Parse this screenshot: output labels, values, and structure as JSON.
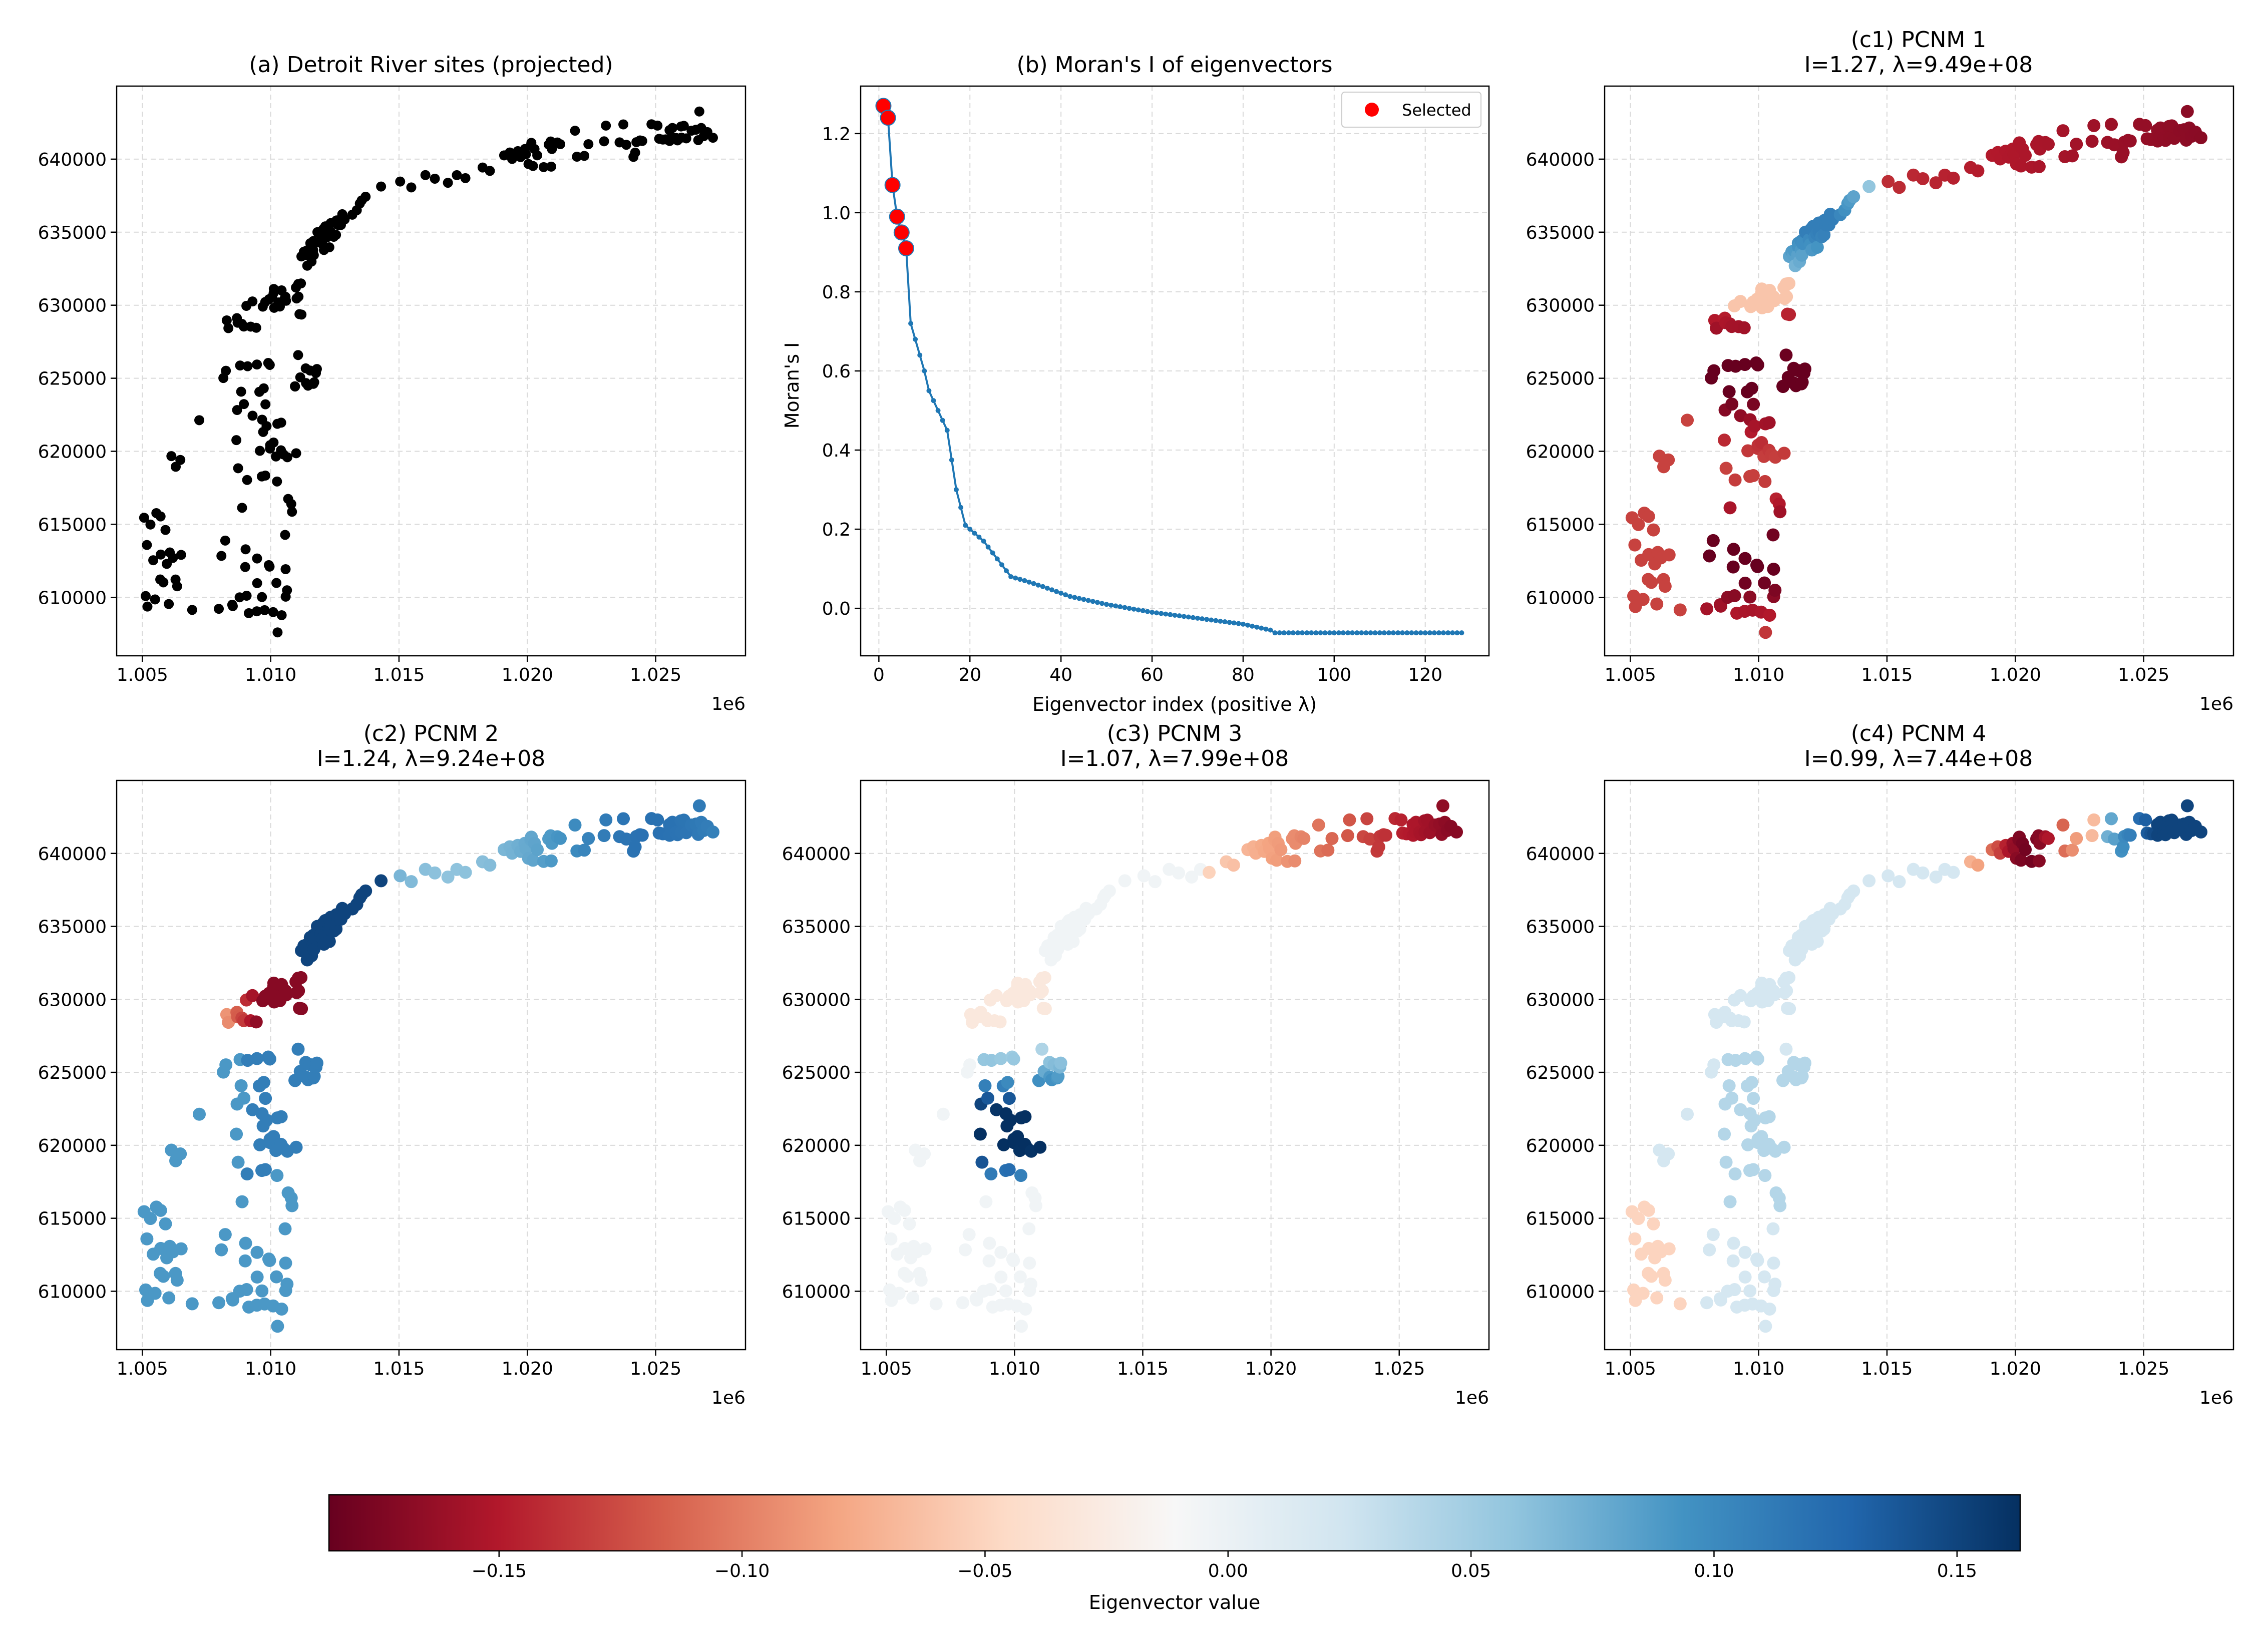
{
  "chart_data": [
    {
      "type": "scatter",
      "title": "(a) Detroit River sites (projected)",
      "xlabel": "",
      "ylabel": "",
      "xlim": [
        1004000,
        1028500
      ],
      "ylim": [
        606000,
        645000
      ],
      "x_ticks": [
        1005000,
        1010000,
        1015000,
        1020000,
        1025000
      ],
      "x_tick_labels": [
        "1.005",
        "1.010",
        "1.015",
        "1.020",
        "1.025"
      ],
      "x_offset_label": "1e6",
      "y_ticks": [
        610000,
        615000,
        620000,
        625000,
        630000,
        635000,
        640000
      ],
      "y_tick_labels": [
        "610000",
        "615000",
        "620000",
        "625000",
        "630000",
        "635000",
        "640000"
      ],
      "grid": true,
      "color": "#000000"
    },
    {
      "type": "line",
      "title": "(b) Moran's I of eigenvectors",
      "xlabel": "Eigenvector index (positive λ)",
      "ylabel": "Moran's I",
      "xlim": [
        -4,
        134
      ],
      "ylim": [
        -0.12,
        1.32
      ],
      "x_ticks": [
        0,
        20,
        40,
        60,
        80,
        100,
        120
      ],
      "x_tick_labels": [
        "0",
        "20",
        "40",
        "60",
        "80",
        "100",
        "120"
      ],
      "y_ticks": [
        0.0,
        0.2,
        0.4,
        0.6,
        0.8,
        1.0,
        1.2
      ],
      "y_tick_labels": [
        "0.0",
        "0.2",
        "0.4",
        "0.6",
        "0.8",
        "1.0",
        "1.2"
      ],
      "grid": true,
      "legend": {
        "placement": "top-right",
        "entries": [
          "Selected"
        ]
      },
      "line_color": "#1f77b4",
      "selected_color": "#ff0000",
      "series": [
        {
          "x": [
            1,
            2,
            3,
            4,
            5,
            6
          ],
          "y": [
            1.27,
            1.24,
            1.07,
            0.99,
            0.95,
            0.91
          ],
          "highlight": true
        }
      ],
      "curve_points": [
        [
          1,
          1.27
        ],
        [
          2,
          1.24
        ],
        [
          3,
          1.07
        ],
        [
          4,
          0.99
        ],
        [
          5,
          0.95
        ],
        [
          6,
          0.91
        ],
        [
          7,
          0.72
        ],
        [
          8,
          0.68
        ],
        [
          10,
          0.6
        ],
        [
          11,
          0.55
        ],
        [
          13,
          0.5
        ],
        [
          15,
          0.45
        ],
        [
          17,
          0.3
        ],
        [
          19,
          0.21
        ],
        [
          21,
          0.19
        ],
        [
          23,
          0.17
        ],
        [
          25,
          0.14
        ],
        [
          27,
          0.11
        ],
        [
          29,
          0.08
        ],
        [
          32,
          0.07
        ],
        [
          36,
          0.055
        ],
        [
          42,
          0.03
        ],
        [
          50,
          0.01
        ],
        [
          60,
          -0.01
        ],
        [
          70,
          -0.025
        ],
        [
          80,
          -0.04
        ],
        [
          86,
          -0.055
        ],
        [
          87,
          -0.062
        ],
        [
          128,
          -0.062
        ]
      ],
      "n_points": 128
    },
    {
      "type": "scatter",
      "title": "(c1) PCNM 1",
      "subtitle": "I=1.27, λ=9.49e+08",
      "xlim": [
        1004000,
        1028500
      ],
      "ylim": [
        606000,
        645000
      ],
      "color_mapping": "PCNM 1",
      "grid": true
    },
    {
      "type": "scatter",
      "title": "(c2) PCNM 2",
      "subtitle": "I=1.24, λ=9.24e+08",
      "xlim": [
        1004000,
        1028500
      ],
      "ylim": [
        606000,
        645000
      ],
      "color_mapping": "PCNM 2",
      "grid": true
    },
    {
      "type": "scatter",
      "title": "(c3) PCNM 3",
      "subtitle": "I=1.07, λ=7.99e+08",
      "xlim": [
        1004000,
        1028500
      ],
      "ylim": [
        606000,
        645000
      ],
      "color_mapping": "PCNM 3",
      "grid": true
    },
    {
      "type": "scatter",
      "title": "(c4) PCNM 4",
      "subtitle": "I=0.99, λ=7.44e+08",
      "xlim": [
        1004000,
        1028500
      ],
      "ylim": [
        606000,
        645000
      ],
      "color_mapping": "PCNM 4",
      "grid": true
    }
  ],
  "site_points": [
    [
      1005069,
      615452
    ],
    [
      1005131,
      610090
    ],
    [
      1005178,
      613588
    ],
    [
      1005199,
      609370
    ],
    [
      1005316,
      614985
    ],
    [
      1005425,
      612541
    ],
    [
      1005497,
      609858
    ],
    [
      1005546,
      615768
    ],
    [
      1005698,
      611225
    ],
    [
      1005711,
      615541
    ],
    [
      1005718,
      612932
    ],
    [
      1005820,
      611026
    ],
    [
      1005902,
      614616
    ],
    [
      1005952,
      612291
    ],
    [
      1006032,
      609544
    ],
    [
      1006070,
      613075
    ],
    [
      1006132,
      619669
    ],
    [
      1006190,
      612701
    ],
    [
      1006294,
      611221
    ],
    [
      1006302,
      618941
    ],
    [
      1006357,
      610759
    ],
    [
      1006481,
      619410
    ],
    [
      1006512,
      612908
    ],
    [
      1006942,
      609141
    ],
    [
      1007219,
      622130
    ],
    [
      1007980,
      609215
    ],
    [
      1008081,
      612839
    ],
    [
      1008157,
      625015
    ],
    [
      1008230,
      613887
    ],
    [
      1008256,
      625513
    ],
    [
      1008289,
      628962
    ],
    [
      1008353,
      628429
    ],
    [
      1008503,
      609494
    ],
    [
      1008525,
      609399
    ],
    [
      1008664,
      620766
    ],
    [
      1008685,
      629115
    ],
    [
      1008692,
      622825
    ],
    [
      1008713,
      628803
    ],
    [
      1008732,
      618840
    ],
    [
      1008791,
      610003
    ],
    [
      1008809,
      625873
    ],
    [
      1008850,
      624081
    ],
    [
      1008880,
      628720
    ],
    [
      1008887,
      616133
    ],
    [
      1008953,
      628540
    ],
    [
      1008958,
      623232
    ],
    [
      1009008,
      612079
    ],
    [
      1009024,
      613289
    ],
    [
      1009054,
      629955
    ],
    [
      1009063,
      610114
    ],
    [
      1009083,
      618038
    ],
    [
      1009101,
      625822
    ],
    [
      1009149,
      608916
    ],
    [
      1009220,
      628535
    ],
    [
      1009291,
      630258
    ],
    [
      1009295,
      622437
    ],
    [
      1009438,
      628454
    ],
    [
      1009461,
      609046
    ],
    [
      1009465,
      625941
    ],
    [
      1009471,
      612662
    ],
    [
      1009474,
      610972
    ],
    [
      1009559,
      624068
    ],
    [
      1009580,
      620033
    ],
    [
      1009657,
      618277
    ],
    [
      1009661,
      610022
    ],
    [
      1009667,
      622163
    ],
    [
      1009693,
      629902
    ],
    [
      1009707,
      621324
    ],
    [
      1009731,
      624309
    ],
    [
      1009764,
      609124
    ],
    [
      1009788,
      630217
    ],
    [
      1009792,
      618336
    ],
    [
      1009796,
      623215
    ],
    [
      1009840,
      621722
    ],
    [
      1009906,
      626047
    ],
    [
      1009929,
      612209
    ],
    [
      1009936,
      630408
    ],
    [
      1009958,
      612104
    ],
    [
      1009966,
      625913
    ],
    [
      1009974,
      620187
    ],
    [
      1009978,
      620418
    ],
    [
      1010064,
      630580
    ],
    [
      1010098,
      608991
    ],
    [
      1010113,
      620600
    ],
    [
      1010118,
      630854
    ],
    [
      1010123,
      631112
    ],
    [
      1010136,
      629822
    ],
    [
      1010205,
      619643
    ],
    [
      1010224,
      610986
    ],
    [
      1010248,
      617931
    ],
    [
      1010261,
      621879
    ],
    [
      1010269,
      607603
    ],
    [
      1010300,
      630191
    ],
    [
      1010359,
      629910
    ],
    [
      1010402,
      620066
    ],
    [
      1010411,
      621960
    ],
    [
      1010426,
      631016
    ],
    [
      1010429,
      608778
    ],
    [
      1010493,
      630303
    ],
    [
      1010501,
      619785
    ],
    [
      1010563,
      614278
    ],
    [
      1010563,
      630557
    ],
    [
      1010579,
      630575
    ],
    [
      1010583,
      611929
    ],
    [
      1010586,
      610049
    ],
    [
      1010599,
      630306
    ],
    [
      1010637,
      610487
    ],
    [
      1010651,
      619592
    ],
    [
      1010682,
      616741
    ],
    [
      1010803,
      616394
    ],
    [
      1010832,
      615860
    ],
    [
      1010945,
      624451
    ],
    [
      1010951,
      624434
    ],
    [
      1010985,
      631210
    ],
    [
      1010994,
      619867
    ],
    [
      1011011,
      630461
    ],
    [
      1011070,
      626587
    ],
    [
      1011076,
      631453
    ],
    [
      1011085,
      630584
    ],
    [
      1011122,
      629388
    ],
    [
      1011153,
      625064
    ],
    [
      1011181,
      631491
    ],
    [
      1011198,
      633339
    ],
    [
      1011201,
      629360
    ],
    [
      1011295,
      633662
    ],
    [
      1011359,
      633425
    ],
    [
      1011367,
      625678
    ],
    [
      1011377,
      624668
    ],
    [
      1011392,
      633729
    ],
    [
      1011425,
      632705
    ],
    [
      1011455,
      624491
    ],
    [
      1011522,
      633431
    ],
    [
      1011540,
      625524
    ],
    [
      1011545,
      634244
    ],
    [
      1011552,
      634002
    ],
    [
      1011577,
      633406
    ],
    [
      1011593,
      632987
    ],
    [
      1011657,
      633769
    ],
    [
      1011665,
      624617
    ],
    [
      1011665,
      634393
    ],
    [
      1011682,
      633426
    ],
    [
      1011698,
      624728
    ],
    [
      1011711,
      634227
    ],
    [
      1011765,
      625359
    ],
    [
      1011802,
      625634
    ],
    [
      1011821,
      635003
    ],
    [
      1011934,
      635039
    ],
    [
      1011968,
      634484
    ],
    [
      1012023,
      634165
    ],
    [
      1012050,
      635214
    ],
    [
      1012075,
      633779
    ],
    [
      1012129,
      635400
    ],
    [
      1012189,
      634646
    ],
    [
      1012270,
      634869
    ],
    [
      1012287,
      633966
    ],
    [
      1012301,
      635512
    ],
    [
      1012306,
      634848
    ],
    [
      1012342,
      635625
    ],
    [
      1012354,
      635008
    ],
    [
      1012459,
      634686
    ],
    [
      1012547,
      634817
    ],
    [
      1012564,
      635805
    ],
    [
      1012628,
      635493
    ],
    [
      1012681,
      635758
    ],
    [
      1012709,
      635876
    ],
    [
      1012739,
      635493
    ],
    [
      1012790,
      636230
    ],
    [
      1012883,
      635874
    ],
    [
      1013182,
      636197
    ],
    [
      1013356,
      636505
    ],
    [
      1013474,
      636961
    ],
    [
      1013546,
      637172
    ],
    [
      1013699,
      637427
    ],
    [
      1014302,
      638125
    ],
    [
      1015045,
      638466
    ],
    [
      1015479,
      638065
    ],
    [
      1016029,
      638907
    ],
    [
      1016397,
      638661
    ],
    [
      1016906,
      638382
    ],
    [
      1017254,
      638904
    ],
    [
      1017588,
      638700
    ],
    [
      1018257,
      639428
    ],
    [
      1018541,
      639195
    ],
    [
      1019097,
      640258
    ],
    [
      1019317,
      640455
    ],
    [
      1019408,
      640015
    ],
    [
      1019629,
      640550
    ],
    [
      1019738,
      640139
    ],
    [
      1019906,
      640693
    ],
    [
      1019946,
      640333
    ],
    [
      1020045,
      639665
    ],
    [
      1020138,
      640939
    ],
    [
      1020157,
      641115
    ],
    [
      1020221,
      639532
    ],
    [
      1020280,
      640692
    ],
    [
      1020386,
      640260
    ],
    [
      1020637,
      639453
    ],
    [
      1020834,
      640996
    ],
    [
      1020908,
      641210
    ],
    [
      1020930,
      639487
    ],
    [
      1020958,
      640692
    ],
    [
      1021170,
      641140
    ],
    [
      1021283,
      641024
    ],
    [
      1021858,
      641945
    ],
    [
      1021932,
      640167
    ],
    [
      1022220,
      640225
    ],
    [
      1022380,
      641023
    ],
    [
      1022991,
      641222
    ],
    [
      1023062,
      642295
    ],
    [
      1023594,
      641148
    ],
    [
      1023741,
      642378
    ],
    [
      1023857,
      640983
    ],
    [
      1024134,
      640155
    ],
    [
      1024201,
      640446
    ],
    [
      1024250,
      641163
    ],
    [
      1024390,
      641281
    ],
    [
      1024478,
      641244
    ],
    [
      1024837,
      642388
    ],
    [
      1025072,
      642296
    ],
    [
      1025136,
      641395
    ],
    [
      1025280,
      641343
    ],
    [
      1025387,
      641356
    ],
    [
      1025540,
      641983
    ],
    [
      1025545,
      641241
    ],
    [
      1025628,
      641486
    ],
    [
      1025653,
      642136
    ],
    [
      1025794,
      641455
    ],
    [
      1025851,
      641284
    ],
    [
      1025989,
      642235
    ],
    [
      1026007,
      641476
    ],
    [
      1026098,
      642281
    ],
    [
      1026194,
      641422
    ],
    [
      1026398,
      641949
    ],
    [
      1026570,
      642013
    ],
    [
      1026659,
      641300
    ],
    [
      1026702,
      643262
    ],
    [
      1026777,
      642133
    ],
    [
      1026874,
      641571
    ],
    [
      1027016,
      641853
    ],
    [
      1027232,
      641466
    ]
  ],
  "colorbar": {
    "label": "Eigenvector value",
    "vmin": -0.185,
    "vmax": 0.163,
    "ticks": [
      -0.15,
      -0.1,
      -0.05,
      0.0,
      0.05,
      0.1,
      0.15
    ],
    "tick_labels": [
      "−0.15",
      "−0.10",
      "−0.05",
      "0.00",
      "0.05",
      "0.10",
      "0.15"
    ],
    "colormap": "RdBu",
    "stops": [
      "#67001f",
      "#b2182b",
      "#d6604d",
      "#f4a582",
      "#fddbc7",
      "#f7f7f7",
      "#d1e5f0",
      "#92c5de",
      "#4393c3",
      "#2166ac",
      "#053061"
    ]
  }
}
